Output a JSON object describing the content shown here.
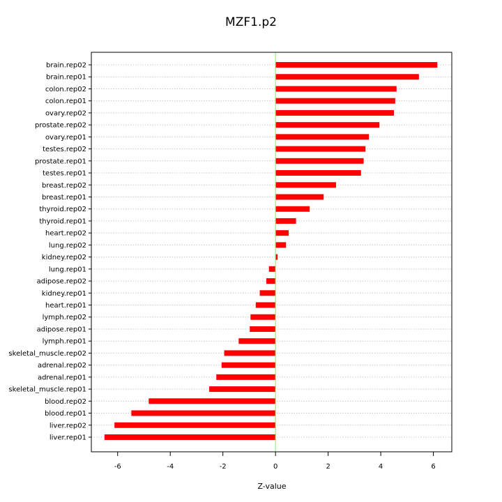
{
  "chart_data": {
    "type": "bar",
    "orientation": "horizontal",
    "title": "MZF1.p2",
    "xlabel": "Z-value",
    "ylabel": "",
    "xlim": [
      -7,
      6.7
    ],
    "xticks": [
      -6,
      -4,
      -2,
      0,
      2,
      4,
      6
    ],
    "grid": true,
    "zero_line_color": "#66ff66",
    "bar_color": "#ff0000",
    "categories": [
      "brain.rep02",
      "brain.rep01",
      "colon.rep02",
      "colon.rep01",
      "ovary.rep02",
      "prostate.rep02",
      "ovary.rep01",
      "testes.rep02",
      "prostate.rep01",
      "testes.rep01",
      "breast.rep02",
      "breast.rep01",
      "thyroid.rep02",
      "thyroid.rep01",
      "heart.rep02",
      "lung.rep02",
      "kidney.rep02",
      "lung.rep01",
      "adipose.rep02",
      "kidney.rep01",
      "heart.rep01",
      "lymph.rep02",
      "adipose.rep01",
      "lymph.rep01",
      "skeletal_muscle.rep02",
      "adrenal.rep02",
      "adrenal.rep01",
      "skeletal_muscle.rep01",
      "blood.rep02",
      "blood.rep01",
      "liver.rep02",
      "liver.rep01"
    ],
    "values": [
      6.15,
      5.45,
      4.6,
      4.55,
      4.5,
      3.95,
      3.55,
      3.42,
      3.35,
      3.25,
      2.3,
      1.83,
      1.3,
      0.78,
      0.5,
      0.4,
      0.08,
      -0.25,
      -0.35,
      -0.6,
      -0.75,
      -0.95,
      -0.98,
      -1.4,
      -1.95,
      -2.05,
      -2.25,
      -2.52,
      -4.82,
      -5.48,
      -6.12,
      -6.5
    ]
  }
}
